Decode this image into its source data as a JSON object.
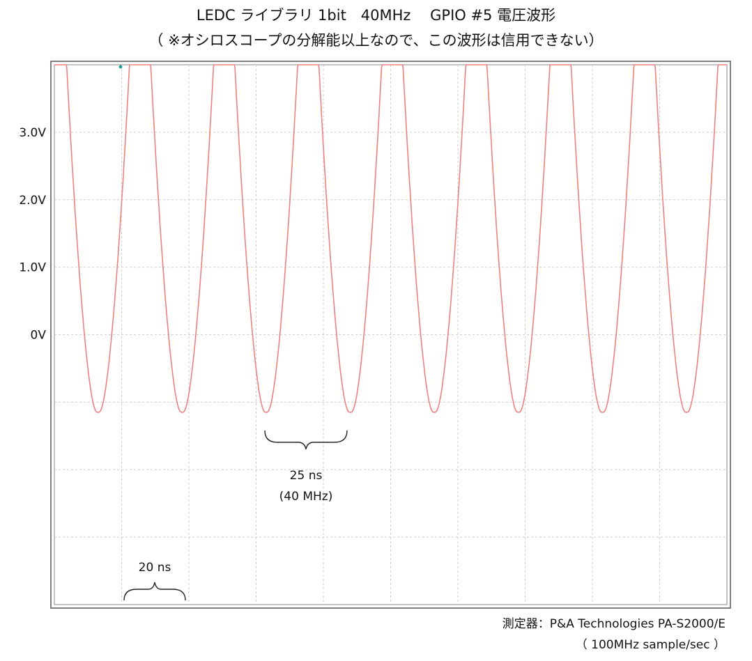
{
  "header": {
    "title": "LEDC ライブラリ 1bit　40MHz　 GPIO #5 電圧波形",
    "subtitle": "（ ※オシロスコープの分解能以上なので、この波形は信用できない）"
  },
  "footer": {
    "instrument": "測定器：P&A Technologies PA-S2000/E",
    "sample_rate": "（ 100MHz sample/sec ）"
  },
  "annotations": {
    "period": "25 ns",
    "frequency": "(40 MHz)",
    "division": "20 ns"
  },
  "colors": {
    "trace": "#f08080",
    "grid": "#cccccc",
    "frame": "#555555",
    "marker": "#2aa198"
  },
  "chart_data": {
    "type": "line",
    "title": "LEDC ライブラリ 1bit　40MHz　 GPIO #5 電圧波形",
    "xlabel": "",
    "ylabel": "",
    "x_unit": "ns",
    "xlim": [
      0,
      200
    ],
    "ylim": [
      -4,
      4
    ],
    "y_ticks": [
      {
        "value": 3,
        "label": "3.0V"
      },
      {
        "value": 2,
        "label": "2.0V"
      },
      {
        "value": 1,
        "label": "1.0V"
      },
      {
        "value": 0,
        "label": "0V"
      }
    ],
    "x_division_ns": 20,
    "grid": true,
    "series": [
      {
        "period_ns": 25,
        "min_v": -1.15,
        "clipped_above_v": 4.0,
        "trough_times_ns": [
          13,
          38,
          63,
          88,
          113,
          138,
          163,
          188
        ],
        "peak_times_ns": [
          0.5,
          25.5,
          50.5,
          75.5,
          100.5,
          125.5,
          150.5,
          175.5,
          200.5
        ]
      }
    ]
  }
}
